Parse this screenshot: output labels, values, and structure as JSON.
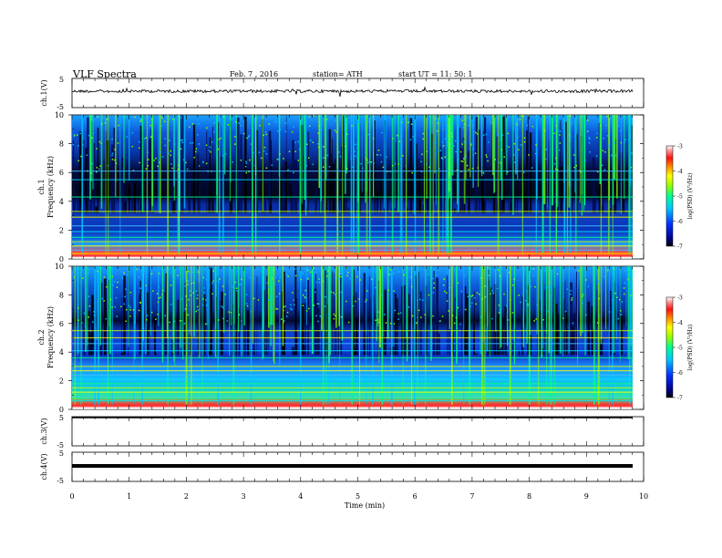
{
  "header": {
    "title": "VLF Spectra",
    "date": "Feb. 7 , 2016",
    "station": "station= ATH",
    "start": "start UT = 11: 50: 1"
  },
  "chart_data": [
    {
      "type": "line",
      "panel": "ch1-waveform",
      "ylabel": "ch.1(V)",
      "yticks": [
        "5",
        "-5"
      ],
      "ylim": [
        -5,
        5
      ],
      "series": [
        {
          "x": [
            0,
            9.8
          ],
          "values": [
            0,
            0
          ]
        }
      ],
      "note_color": "#000000"
    },
    {
      "type": "heatmap",
      "panel": "ch1-spectrogram",
      "title": "ch.1",
      "ylabel": "Frequency (kHz)",
      "yticks": [
        "0",
        "2",
        "4",
        "6",
        "8",
        "10"
      ],
      "ylim": [
        0,
        10
      ],
      "xlim": [
        0,
        10
      ],
      "colorbar": {
        "label": "log(PSD) (V²/Hz)",
        "ticks": [
          "-3",
          "-4",
          "-5",
          "-6",
          "-7"
        ],
        "range": [
          -7,
          -3
        ],
        "colors": [
          "#000000",
          "#0000a0",
          "#0020ff",
          "#00c0ff",
          "#00ff80",
          "#80ff00",
          "#ffff00",
          "#ff8000",
          "#ff0000",
          "#ffb0b0",
          "#ffffff"
        ]
      },
      "band_lines_khz": [
        0.1,
        0.25,
        0.4,
        0.6,
        0.9,
        1.2,
        1.5,
        1.9,
        2.3,
        2.9,
        3.3,
        4.3,
        5.5,
        6.1
      ]
    },
    {
      "type": "heatmap",
      "panel": "ch2-spectrogram",
      "title": "ch.2",
      "ylabel": "Frequency (kHz)",
      "yticks": [
        "0",
        "2",
        "4",
        "6",
        "8",
        "10"
      ],
      "ylim": [
        0,
        10
      ],
      "xlim": [
        0,
        10
      ],
      "colorbar": {
        "label": "log(PSD) (V²/Hz)",
        "ticks": [
          "-3",
          "-4",
          "-5",
          "-6",
          "-7"
        ],
        "range": [
          -7,
          -3
        ]
      },
      "band_lines_khz": [
        0.1,
        0.3,
        0.6,
        0.9,
        1.2,
        1.5,
        1.8,
        2.1,
        2.4,
        2.7,
        3.0,
        3.6,
        4.1,
        4.6,
        5.0,
        5.5
      ]
    },
    {
      "type": "line",
      "panel": "ch3-waveform",
      "ylabel": "ch.3(V)",
      "yticks": [
        "5",
        "-5"
      ],
      "ylim": [
        -5,
        5
      ],
      "series": [
        {
          "x": [
            0,
            9.8
          ],
          "values": [
            -5,
            -5
          ]
        }
      ]
    },
    {
      "type": "line",
      "panel": "ch4-waveform",
      "ylabel": "ch.4(V)",
      "yticks": [
        "5",
        "-5"
      ],
      "ylim": [
        -5,
        5
      ],
      "series": [
        {
          "x": [
            0,
            9.8
          ],
          "values": [
            0,
            0
          ]
        }
      ]
    }
  ],
  "xaxis": {
    "label": "Time (min)",
    "ticks": [
      "0",
      "1",
      "2",
      "3",
      "4",
      "5",
      "6",
      "7",
      "8",
      "9",
      "10"
    ],
    "range": [
      0,
      10
    ]
  }
}
